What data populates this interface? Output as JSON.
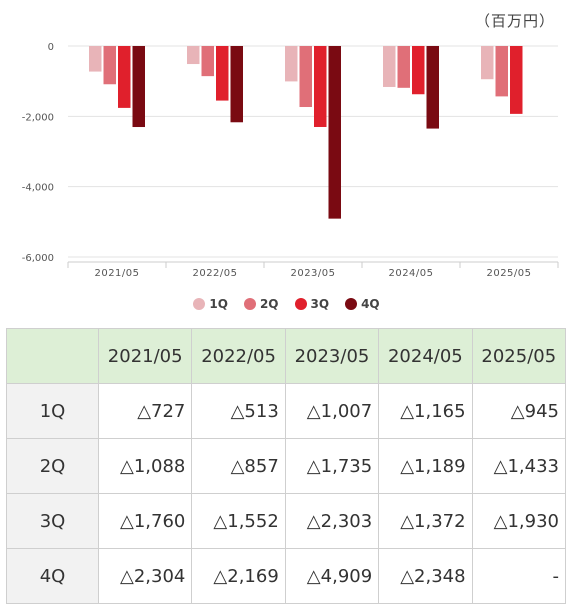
{
  "unit_label": "（百万円）",
  "chart_data": {
    "type": "bar",
    "categories": [
      "2021/05",
      "2022/05",
      "2023/05",
      "2024/05",
      "2025/05"
    ],
    "series": [
      {
        "name": "1Q",
        "color": "#e8b4b8",
        "values": [
          -727,
          -513,
          -1007,
          -1165,
          -945
        ]
      },
      {
        "name": "2Q",
        "color": "#e06f78",
        "values": [
          -1088,
          -857,
          -1735,
          -1189,
          -1433
        ]
      },
      {
        "name": "3Q",
        "color": "#e0202c",
        "values": [
          -1760,
          -1552,
          -2303,
          -1372,
          -1930
        ]
      },
      {
        "name": "4Q",
        "color": "#7a0a12",
        "values": [
          -2304,
          -2169,
          -4909,
          -2348,
          null
        ]
      }
    ],
    "ylim": [
      -6000,
      0
    ],
    "yticks": [
      "0",
      "-2,000",
      "-4,000",
      "-6,000"
    ],
    "ytick_values": [
      0,
      -2000,
      -4000,
      -6000
    ],
    "legend_position": "bottom",
    "grid": true
  },
  "table": {
    "corner": "",
    "headers": [
      "2021/05",
      "2022/05",
      "2023/05",
      "2024/05",
      "2025/05"
    ],
    "rows": [
      {
        "label": "1Q",
        "cells": [
          "△727",
          "△513",
          "△1,007",
          "△1,165",
          "△945"
        ]
      },
      {
        "label": "2Q",
        "cells": [
          "△1,088",
          "△857",
          "△1,735",
          "△1,189",
          "△1,433"
        ]
      },
      {
        "label": "3Q",
        "cells": [
          "△1,760",
          "△1,552",
          "△2,303",
          "△1,372",
          "△1,930"
        ]
      },
      {
        "label": "4Q",
        "cells": [
          "△2,304",
          "△2,169",
          "△4,909",
          "△2,348",
          "-"
        ]
      }
    ]
  }
}
